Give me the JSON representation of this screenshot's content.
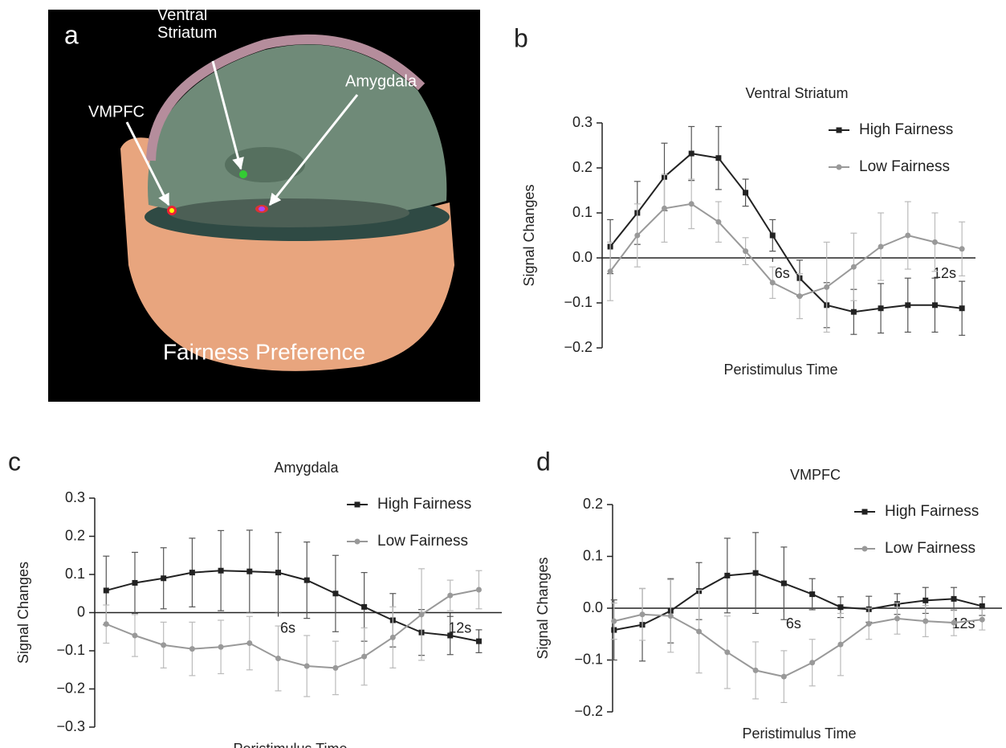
{
  "image_panel": {
    "panel": "a",
    "regions": [
      "VMPFC",
      "Ventral Striatum",
      "Amygdala"
    ],
    "caption": "Fairness Preference"
  },
  "chart_data": [
    {
      "type": "line",
      "panel": "b",
      "title": "Ventral Striatum",
      "x_label": "Peristimulus Time",
      "y_label": "Signal Changes",
      "legend": "upper right",
      "x": [
        0,
        1,
        2,
        3,
        4,
        5,
        6,
        7,
        8,
        9,
        10,
        11,
        12,
        13
      ],
      "xlim": [
        -0.3,
        13.5
      ],
      "xticks": [
        {
          "value": 6,
          "label": "6s"
        },
        {
          "value": 12,
          "label": "12s"
        }
      ],
      "ylim": [
        -0.2,
        0.3
      ],
      "yticks": [
        {
          "value": -0.2,
          "label": "−0.2"
        },
        {
          "value": -0.1,
          "label": "−0.1"
        },
        {
          "value": 0,
          "label": "0.0"
        },
        {
          "value": 0.1,
          "label": "0.1"
        },
        {
          "value": 0.2,
          "label": "0.2"
        },
        {
          "value": 0.3,
          "label": "0.3"
        }
      ],
      "series": [
        {
          "name": "High Fairness",
          "color": "#222222",
          "marker": "square",
          "values": [
            0.025,
            0.1,
            0.18,
            0.232,
            0.222,
            0.145,
            0.05,
            -0.045,
            -0.105,
            -0.12,
            -0.112,
            -0.105,
            -0.105,
            -0.112
          ],
          "errors": [
            0.06,
            0.07,
            0.075,
            0.06,
            0.07,
            0.03,
            0.035,
            0.04,
            0.05,
            0.05,
            0.055,
            0.06,
            0.06,
            0.06
          ]
        },
        {
          "name": "Low Fairness",
          "color": "#999999",
          "marker": "circle",
          "values": [
            -0.03,
            0.05,
            0.11,
            0.12,
            0.08,
            0.015,
            -0.055,
            -0.085,
            -0.065,
            -0.02,
            0.025,
            0.05,
            0.035,
            0.02
          ],
          "errors": [
            0.065,
            0.07,
            0.075,
            0.055,
            0.045,
            0.03,
            0.035,
            0.05,
            0.1,
            0.075,
            0.075,
            0.075,
            0.065,
            0.06
          ]
        }
      ]
    },
    {
      "type": "line",
      "panel": "c",
      "title": "Amygdala",
      "x_label": "Peristimulus Time",
      "y_label": "Signal Changes",
      "legend": "upper right",
      "x": [
        0,
        1,
        2,
        3,
        4,
        5,
        6,
        7,
        8,
        9,
        10,
        11,
        12,
        13
      ],
      "xlim": [
        -0.4,
        13.8
      ],
      "xticks": [
        {
          "value": 6,
          "label": "6s"
        },
        {
          "value": 12,
          "label": "12s"
        }
      ],
      "ylim": [
        -0.3,
        0.3
      ],
      "yticks": [
        {
          "value": -0.3,
          "label": "−0.3"
        },
        {
          "value": -0.2,
          "label": "−0.2"
        },
        {
          "value": -0.1,
          "label": "−0.1"
        },
        {
          "value": 0,
          "label": "0"
        },
        {
          "value": 0.1,
          "label": "0.1"
        },
        {
          "value": 0.2,
          "label": "0.2"
        },
        {
          "value": 0.3,
          "label": "0.3"
        }
      ],
      "series": [
        {
          "name": "High Fairness",
          "color": "#222222",
          "marker": "square",
          "values": [
            0.058,
            0.078,
            0.09,
            0.105,
            0.11,
            0.108,
            0.105,
            0.085,
            0.05,
            0.015,
            -0.02,
            -0.052,
            -0.06,
            -0.075
          ],
          "errors": [
            0.09,
            0.08,
            0.08,
            0.09,
            0.105,
            0.108,
            0.105,
            0.1,
            0.1,
            0.09,
            0.07,
            0.06,
            0.05,
            0.03
          ]
        },
        {
          "name": "Low Fairness",
          "color": "#999999",
          "marker": "circle",
          "values": [
            -0.03,
            -0.06,
            -0.085,
            -0.095,
            -0.09,
            -0.08,
            -0.12,
            -0.14,
            -0.145,
            -0.115,
            -0.065,
            -0.005,
            0.045,
            0.06
          ],
          "errors": [
            0.05,
            0.055,
            0.06,
            0.07,
            0.07,
            0.07,
            0.085,
            0.08,
            0.07,
            0.075,
            0.08,
            0.12,
            0.04,
            0.05
          ]
        }
      ]
    },
    {
      "type": "line",
      "panel": "d",
      "title": "VMPFC",
      "x_label": "Peristimulus Time",
      "y_label": "Signal Changes",
      "legend": "upper right",
      "x": [
        0,
        1,
        2,
        3,
        4,
        5,
        6,
        7,
        8,
        9,
        10,
        11,
        12,
        13
      ],
      "xlim": [
        -0.05,
        13.7
      ],
      "xticks": [
        {
          "value": 6,
          "label": "6s"
        },
        {
          "value": 12,
          "label": "12s"
        }
      ],
      "ylim": [
        -0.2,
        0.2
      ],
      "yticks": [
        {
          "value": -0.2,
          "label": "−0.2"
        },
        {
          "value": -0.1,
          "label": "−0.1"
        },
        {
          "value": 0,
          "label": "0.0"
        },
        {
          "value": 0.1,
          "label": "0.1"
        },
        {
          "value": 0.2,
          "label": "0.2"
        }
      ],
      "series": [
        {
          "name": "High Fairness",
          "color": "#222222",
          "marker": "square",
          "values": [
            -0.042,
            -0.032,
            -0.005,
            0.033,
            0.063,
            0.068,
            0.048,
            0.027,
            0.002,
            -0.002,
            0.008,
            0.015,
            0.018,
            0.004
          ],
          "errors": [
            0.058,
            0.07,
            0.062,
            0.055,
            0.072,
            0.078,
            0.07,
            0.03,
            0.02,
            0.025,
            0.02,
            0.025,
            0.022,
            0.018
          ]
        },
        {
          "name": "Low Fairness",
          "color": "#999999",
          "marker": "circle",
          "values": [
            -0.025,
            -0.012,
            -0.015,
            -0.045,
            -0.085,
            -0.12,
            -0.132,
            -0.105,
            -0.07,
            -0.03,
            -0.02,
            -0.025,
            -0.028,
            -0.022
          ],
          "errors": [
            0.035,
            0.05,
            0.07,
            0.08,
            0.07,
            0.055,
            0.05,
            0.045,
            0.06,
            0.03,
            0.03,
            0.03,
            0.025,
            0.02
          ]
        }
      ]
    }
  ]
}
